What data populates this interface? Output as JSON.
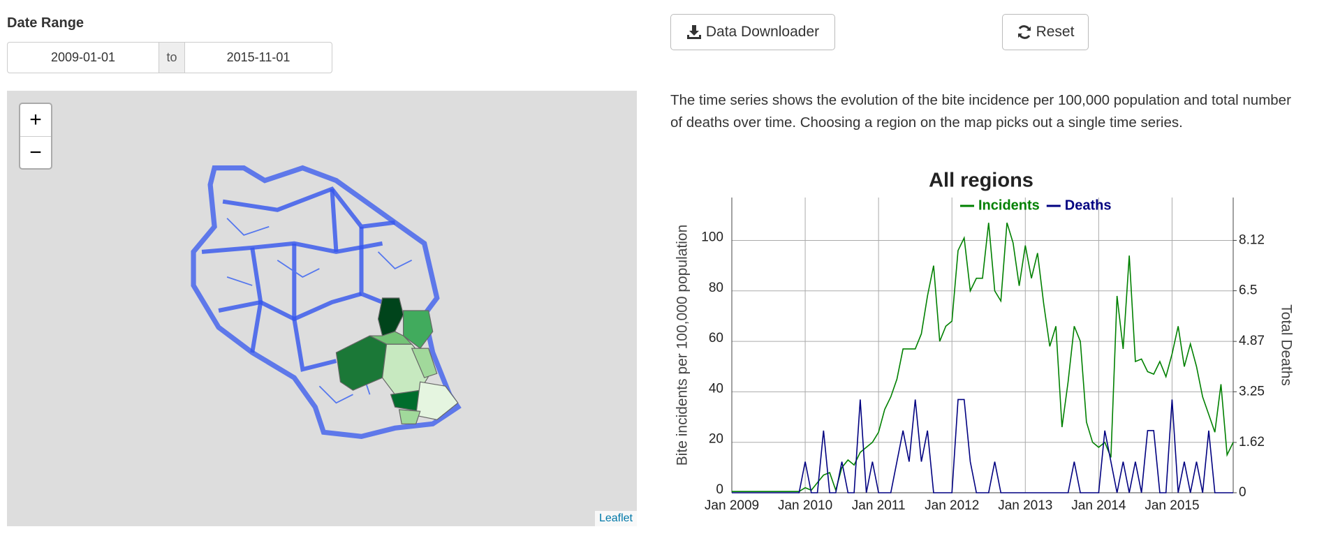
{
  "controls": {
    "date_label": "Date Range",
    "start_date": "2009-01-01",
    "separator": "to",
    "end_date": "2015-11-01",
    "download": "Data Downloader",
    "reset": "Reset"
  },
  "description": "The time series shows the evolution of the bite incidence per 100,000 population and total number of deaths over time. Choosing a region on the map picks out a single time series.",
  "map": {
    "zoom_in": "+",
    "zoom_out": "−",
    "attribution": "Leaflet"
  },
  "chart_data": {
    "type": "line",
    "title": "All regions",
    "y_label": "Bite incidents per 100,000 population",
    "y2_label": "Total Deaths",
    "x": [
      "2009-01",
      "2009-02",
      "2009-03",
      "2009-04",
      "2009-05",
      "2009-06",
      "2009-07",
      "2009-08",
      "2009-09",
      "2009-10",
      "2009-11",
      "2009-12",
      "2010-01",
      "2010-02",
      "2010-03",
      "2010-04",
      "2010-05",
      "2010-06",
      "2010-07",
      "2010-08",
      "2010-09",
      "2010-10",
      "2010-11",
      "2010-12",
      "2011-01",
      "2011-02",
      "2011-03",
      "2011-04",
      "2011-05",
      "2011-06",
      "2011-07",
      "2011-08",
      "2011-09",
      "2011-10",
      "2011-11",
      "2011-12",
      "2012-01",
      "2012-02",
      "2012-03",
      "2012-04",
      "2012-05",
      "2012-06",
      "2012-07",
      "2012-08",
      "2012-09",
      "2012-10",
      "2012-11",
      "2012-12",
      "2013-01",
      "2013-02",
      "2013-03",
      "2013-04",
      "2013-05",
      "2013-06",
      "2013-07",
      "2013-08",
      "2013-09",
      "2013-10",
      "2013-11",
      "2013-12",
      "2014-01",
      "2014-02",
      "2014-03",
      "2014-04",
      "2014-05",
      "2014-06",
      "2014-07",
      "2014-08",
      "2014-09",
      "2014-10",
      "2014-11",
      "2014-12",
      "2015-01",
      "2015-02",
      "2015-03",
      "2015-04",
      "2015-05",
      "2015-06",
      "2015-07",
      "2015-08",
      "2015-09",
      "2015-10",
      "2015-11"
    ],
    "series": [
      {
        "name": "Incidents",
        "color": "#008000",
        "values": [
          0.5,
          0.5,
          0.5,
          0.5,
          0.5,
          0.5,
          0.5,
          0.5,
          0.5,
          0.5,
          0.5,
          0.5,
          2,
          1,
          4,
          7,
          8,
          1,
          10,
          13,
          11,
          16,
          18,
          20,
          24,
          33,
          38,
          45,
          57,
          57,
          57,
          63,
          78,
          90,
          60,
          66,
          68,
          96,
          101,
          80,
          85,
          85,
          107,
          80,
          76,
          107,
          99,
          82,
          98,
          85,
          95,
          75,
          58,
          66,
          26,
          44,
          66,
          60,
          28,
          20,
          18,
          20,
          14,
          78,
          57,
          94,
          52,
          53,
          48,
          47,
          52,
          46,
          55,
          66,
          50,
          59,
          50,
          38,
          31,
          24,
          43,
          15,
          20
        ]
      },
      {
        "name": "Deaths",
        "color": "#000080",
        "axis": "y2",
        "values": [
          0,
          0,
          0,
          0,
          0,
          0,
          0,
          0,
          0,
          0,
          0,
          0,
          1,
          0,
          0,
          2,
          0,
          0,
          1,
          0,
          0,
          3,
          0,
          1,
          0,
          0,
          0,
          1,
          2,
          1,
          3,
          1,
          2,
          0,
          0,
          0,
          0,
          3,
          3,
          1,
          0,
          0,
          0,
          1,
          0,
          0,
          0,
          0,
          0,
          0,
          0,
          0,
          0,
          0,
          0,
          0,
          1,
          0,
          0,
          0,
          0,
          2,
          1,
          0,
          1,
          0,
          1,
          0,
          2,
          2,
          0,
          0,
          3,
          0,
          1,
          0,
          1,
          0,
          2,
          0,
          0,
          0,
          0
        ]
      }
    ],
    "ylim": [
      0,
      117
    ],
    "yticks": [
      0,
      20,
      40,
      60,
      80,
      100
    ],
    "y2lim": [
      0,
      9.5
    ],
    "y2ticks": [
      0,
      1.62,
      3.25,
      4.87,
      6.5,
      8.12
    ],
    "xticks": [
      {
        "value": "2009-01",
        "label": "Jan 2009"
      },
      {
        "value": "2010-01",
        "label": "Jan 2010"
      },
      {
        "value": "2011-01",
        "label": "Jan 2011"
      },
      {
        "value": "2012-01",
        "label": "Jan 2012"
      },
      {
        "value": "2013-01",
        "label": "Jan 2013"
      },
      {
        "value": "2014-01",
        "label": "Jan 2014"
      },
      {
        "value": "2015-01",
        "label": "Jan 2015"
      }
    ],
    "grid": true,
    "legend": "top"
  }
}
